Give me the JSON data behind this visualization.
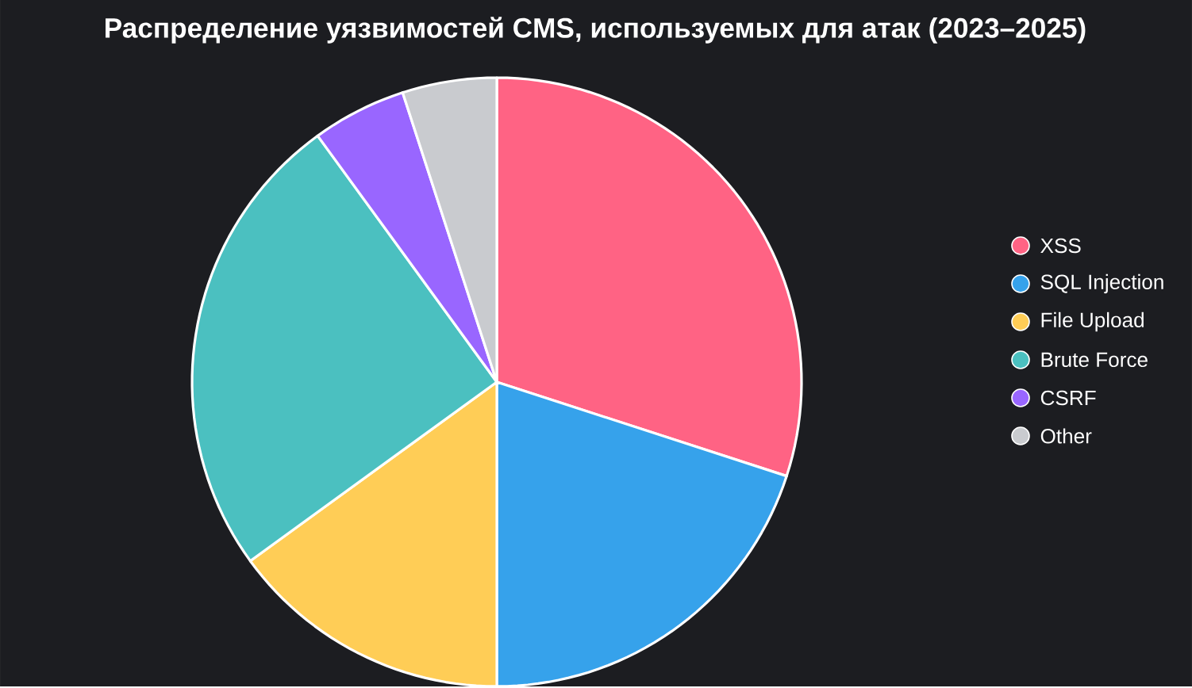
{
  "chart_data": {
    "type": "pie",
    "title": "Распределение уязвимостей CMS, используемых для атак (2023–2025)",
    "categories": [
      "XSS",
      "SQL Injection",
      "File Upload",
      "Brute Force",
      "CSRF",
      "Other"
    ],
    "values": [
      30,
      20,
      15,
      25,
      5,
      5
    ],
    "colors": [
      "#ff6384",
      "#36a2eb",
      "#ffcd56",
      "#4bc0c0",
      "#9966ff",
      "#c9cbcf"
    ],
    "legend": "right"
  }
}
